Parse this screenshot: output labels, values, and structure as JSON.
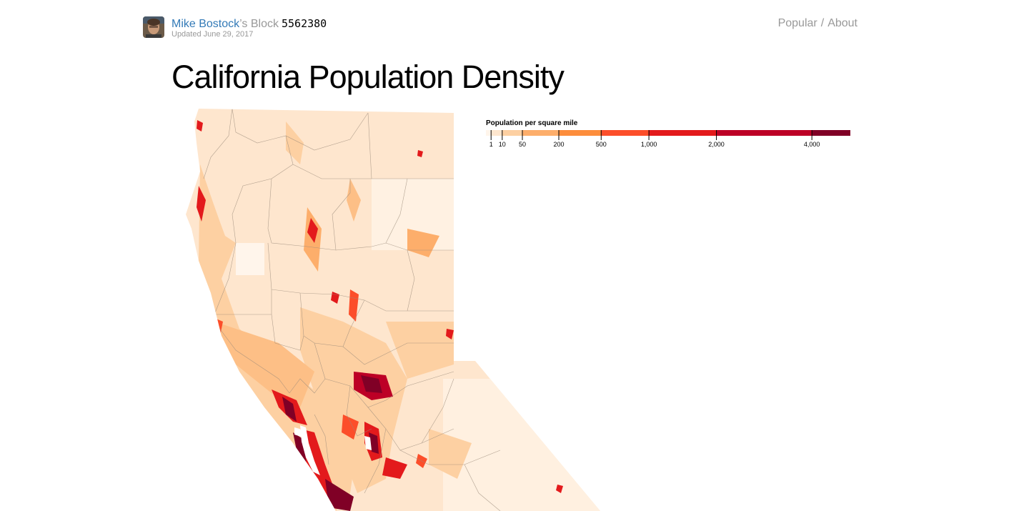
{
  "header": {
    "author": "Mike Bostock",
    "block_suffix": "’s Block",
    "block_id": "5562380",
    "updated": "Updated June 29, 2017",
    "nav": {
      "popular": "Popular",
      "separator": "/",
      "about": "About"
    }
  },
  "page_title": "California Population Density",
  "legend": {
    "title": "Population per square mile",
    "thresholds": [
      1,
      10,
      50,
      200,
      500,
      1000,
      2000,
      4000
    ],
    "tick_labels": [
      "1",
      "10",
      "50",
      "200",
      "500",
      "1,000",
      "2,000",
      "4,000"
    ],
    "domain_max": 5000,
    "colors": [
      "#fff5eb",
      "#fee6ce",
      "#fdd0a2",
      "#fdae6b",
      "#fd8d3c",
      "#fc4e2a",
      "#e31a1c",
      "#bd0026",
      "#800026"
    ]
  },
  "map": {
    "region": "Northern California",
    "colors": {
      "land": "#fee6ce",
      "county_border": "#9a8a7a",
      "dense_urban": "#800026"
    }
  }
}
